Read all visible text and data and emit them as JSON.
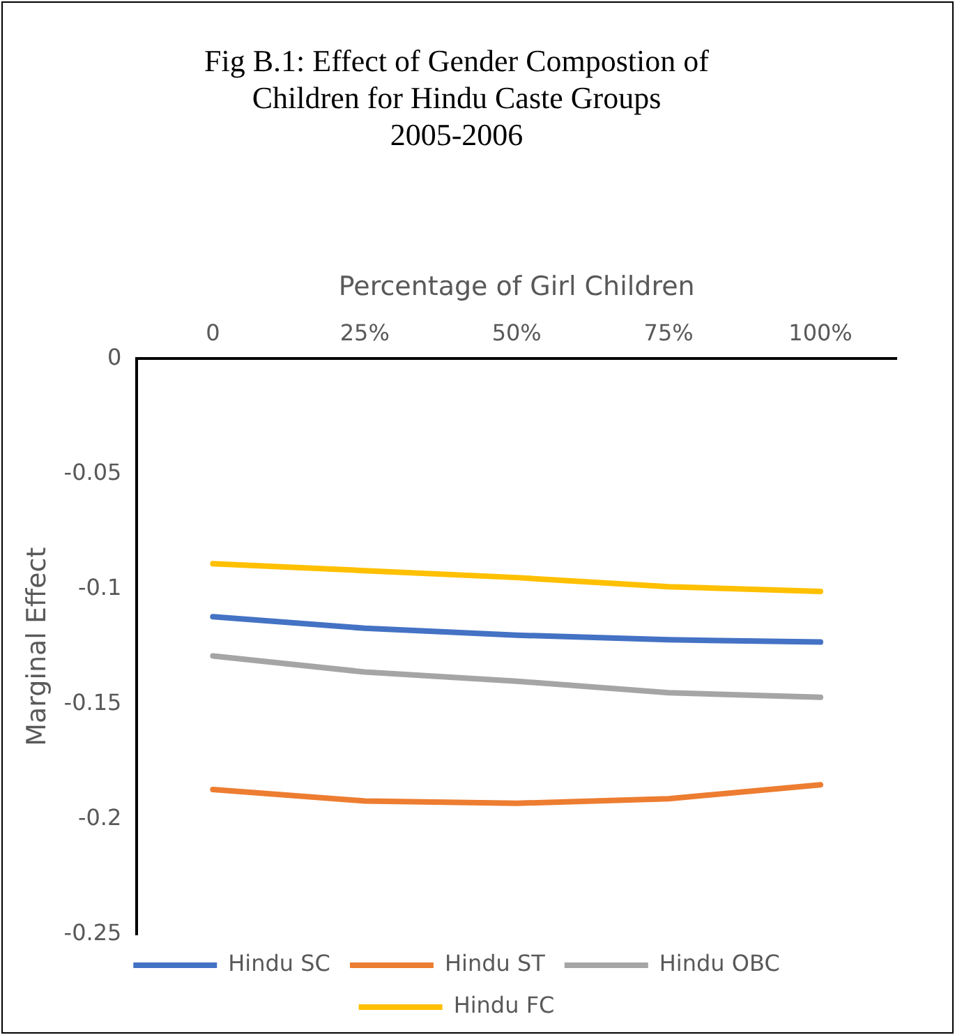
{
  "chart_data": {
    "type": "line",
    "title": "Fig B.1: Effect of Gender Compostion of\nChildren for Hindu Caste Groups\n2005-2006",
    "xlabel": "Percentage of Girl Children",
    "ylabel": "Marginal Effect",
    "categories": [
      "0",
      "25%",
      "50%",
      "75%",
      "100%"
    ],
    "series": [
      {
        "name": "Hindu SC",
        "color": "#4472c4",
        "values": [
          -0.112,
          -0.117,
          -0.12,
          -0.122,
          -0.123
        ]
      },
      {
        "name": "Hindu ST",
        "color": "#ed7d31",
        "values": [
          -0.187,
          -0.192,
          -0.193,
          -0.191,
          -0.185
        ]
      },
      {
        "name": "Hindu OBC",
        "color": "#a5a5a5",
        "values": [
          -0.129,
          -0.136,
          -0.14,
          -0.145,
          -0.147
        ]
      },
      {
        "name": "Hindu FC",
        "color": "#ffc000",
        "values": [
          -0.089,
          -0.092,
          -0.095,
          -0.099,
          -0.101
        ]
      }
    ],
    "ylim": [
      -0.25,
      0
    ],
    "yticks": [
      0,
      -0.05,
      -0.1,
      -0.15,
      -0.2,
      -0.25
    ],
    "grid": false,
    "legend": "bottom",
    "marker": "none",
    "line_style": "solid"
  }
}
